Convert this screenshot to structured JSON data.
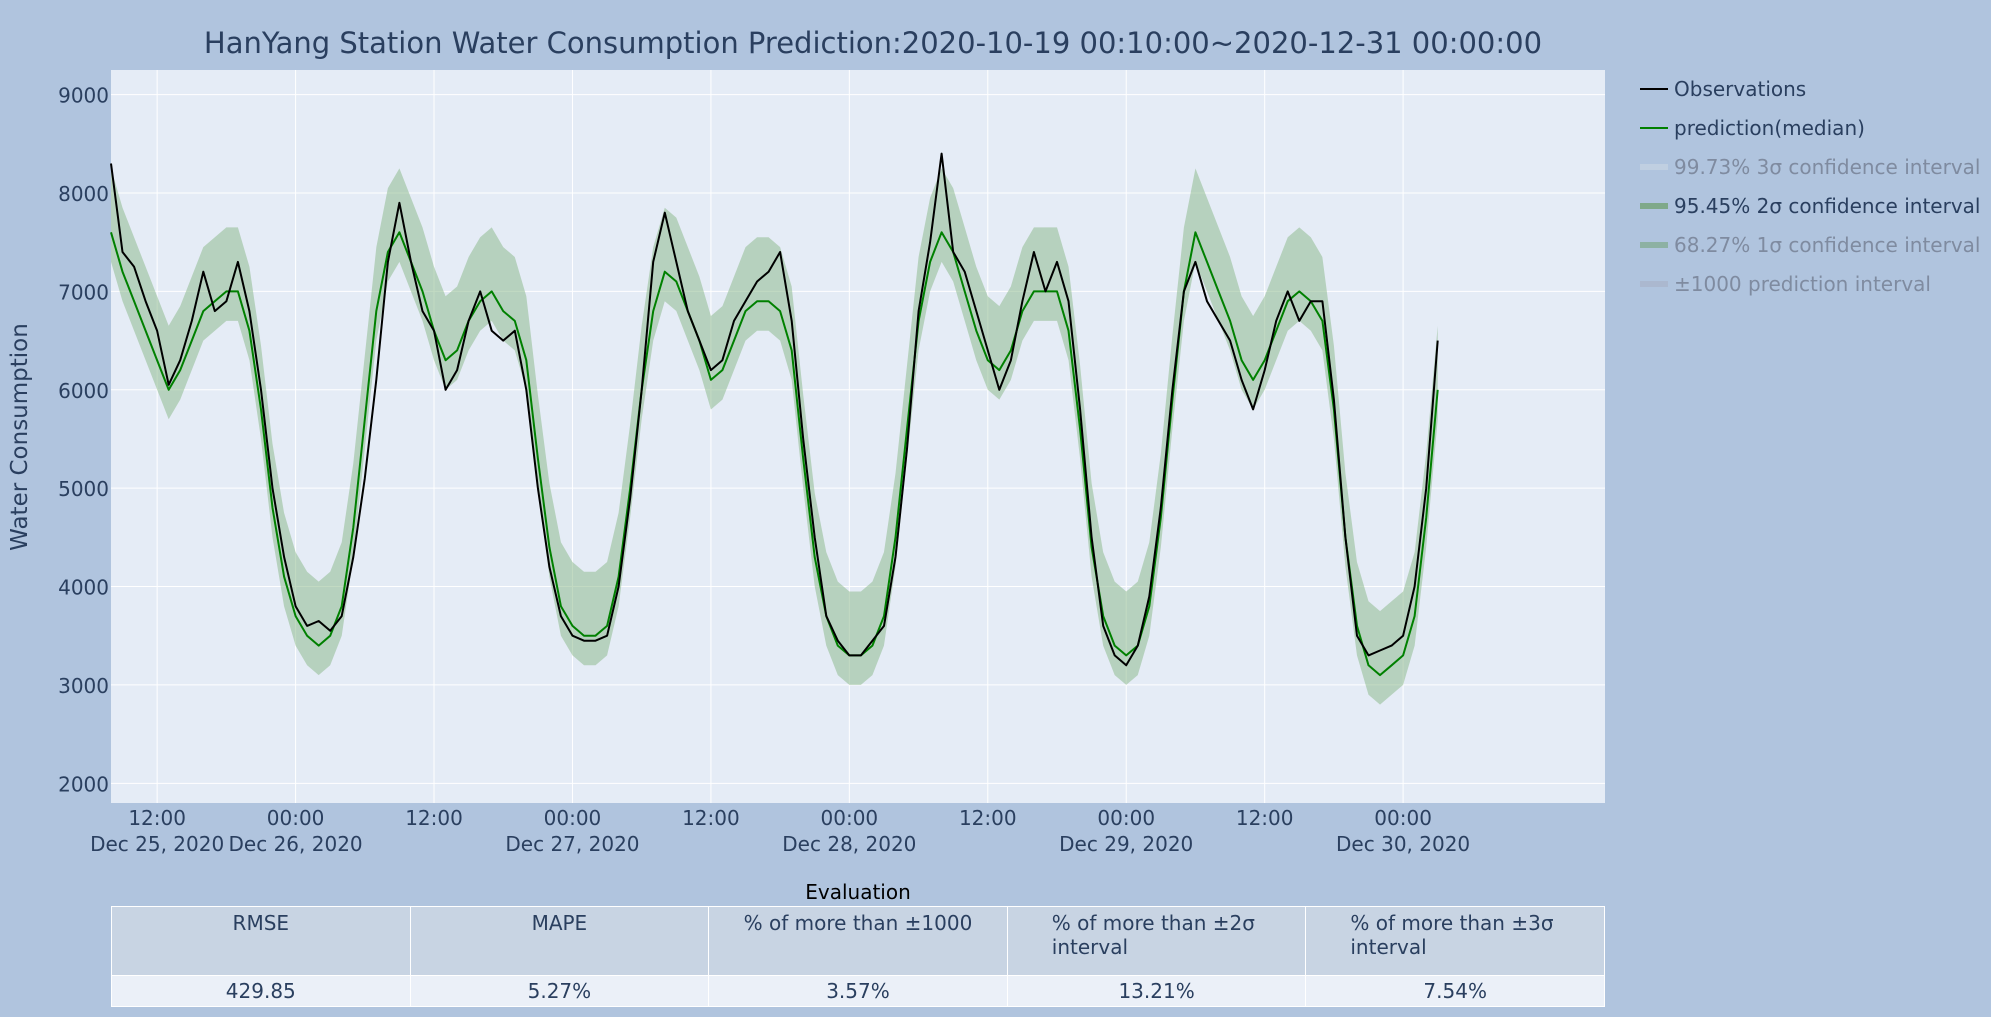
{
  "chart_data": {
    "type": "line",
    "title": "HanYang Station Water Consumption Prediction:2020-10-19 00:10:00~2020-12-31 00:00:00",
    "ylabel": "Water Consumption",
    "xlabel": "",
    "x_range": [
      "2020-12-25 08:00",
      "2020-12-30 17:30"
    ],
    "ylim": [
      1800,
      9250
    ],
    "y_ticks": [
      "2000",
      "3000",
      "4000",
      "5000",
      "6000",
      "7000",
      "8000",
      "9000"
    ],
    "x_ticks": [
      {
        "t": "2020-12-25 12:00",
        "label": "12:00",
        "date": "Dec 25, 2020"
      },
      {
        "t": "2020-12-26 00:00",
        "label": "00:00",
        "date": "Dec 26, 2020"
      },
      {
        "t": "2020-12-26 12:00",
        "label": "12:00",
        "date": ""
      },
      {
        "t": "2020-12-27 00:00",
        "label": "00:00",
        "date": "Dec 27, 2020"
      },
      {
        "t": "2020-12-27 12:00",
        "label": "12:00",
        "date": ""
      },
      {
        "t": "2020-12-28 00:00",
        "label": "00:00",
        "date": "Dec 28, 2020"
      },
      {
        "t": "2020-12-28 12:00",
        "label": "12:00",
        "date": ""
      },
      {
        "t": "2020-12-29 00:00",
        "label": "00:00",
        "date": "Dec 29, 2020"
      },
      {
        "t": "2020-12-29 12:00",
        "label": "12:00",
        "date": ""
      },
      {
        "t": "2020-12-30 00:00",
        "label": "00:00",
        "date": "Dec 30, 2020"
      }
    ],
    "grid": true,
    "legend_position": "right",
    "legend": [
      {
        "name": "Observations",
        "color": "#000000",
        "active": true
      },
      {
        "name": "prediction(median)",
        "color": "#008000",
        "active": true
      },
      {
        "name": "99.73% 3σ confidence interval",
        "color": "#c8d4e3",
        "active": false
      },
      {
        "name": "95.45% 2σ confidence interval",
        "color": "#7fa98a",
        "active": true
      },
      {
        "name": "68.27% 1σ confidence interval",
        "color": "#7fa98a",
        "active": false
      },
      {
        "name": "±1000 prediction interval",
        "color": "#a9b4c9",
        "active": false
      }
    ],
    "band_color": "#8fbc8f",
    "series": [
      {
        "name": "Observations",
        "color": "#000000",
        "points": [
          [
            "2020-12-25 08:00",
            8300
          ],
          [
            "2020-12-25 09:00",
            7400
          ],
          [
            "2020-12-25 10:00",
            7250
          ],
          [
            "2020-12-25 11:00",
            6900
          ],
          [
            "2020-12-25 12:00",
            6600
          ],
          [
            "2020-12-25 13:00",
            6050
          ],
          [
            "2020-12-25 14:00",
            6300
          ],
          [
            "2020-12-25 15:00",
            6700
          ],
          [
            "2020-12-25 16:00",
            7200
          ],
          [
            "2020-12-25 17:00",
            6800
          ],
          [
            "2020-12-25 18:00",
            6900
          ],
          [
            "2020-12-25 19:00",
            7300
          ],
          [
            "2020-12-25 20:00",
            6800
          ],
          [
            "2020-12-25 21:00",
            6000
          ],
          [
            "2020-12-25 22:00",
            5000
          ],
          [
            "2020-12-25 23:00",
            4300
          ],
          [
            "2020-12-26 00:00",
            3800
          ],
          [
            "2020-12-26 01:00",
            3600
          ],
          [
            "2020-12-26 02:00",
            3650
          ],
          [
            "2020-12-26 03:00",
            3550
          ],
          [
            "2020-12-26 04:00",
            3700
          ],
          [
            "2020-12-26 05:00",
            4300
          ],
          [
            "2020-12-26 06:00",
            5100
          ],
          [
            "2020-12-26 07:00",
            6100
          ],
          [
            "2020-12-26 08:00",
            7300
          ],
          [
            "2020-12-26 09:00",
            7900
          ],
          [
            "2020-12-26 10:00",
            7300
          ],
          [
            "2020-12-26 11:00",
            6800
          ],
          [
            "2020-12-26 12:00",
            6600
          ],
          [
            "2020-12-26 13:00",
            6000
          ],
          [
            "2020-12-26 14:00",
            6200
          ],
          [
            "2020-12-26 15:00",
            6700
          ],
          [
            "2020-12-26 16:00",
            7000
          ],
          [
            "2020-12-26 17:00",
            6600
          ],
          [
            "2020-12-26 18:00",
            6500
          ],
          [
            "2020-12-26 19:00",
            6600
          ],
          [
            "2020-12-26 20:00",
            6000
          ],
          [
            "2020-12-26 21:00",
            5000
          ],
          [
            "2020-12-26 22:00",
            4200
          ],
          [
            "2020-12-26 23:00",
            3700
          ],
          [
            "2020-12-27 00:00",
            3500
          ],
          [
            "2020-12-27 01:00",
            3450
          ],
          [
            "2020-12-27 02:00",
            3450
          ],
          [
            "2020-12-27 03:00",
            3500
          ],
          [
            "2020-12-27 04:00",
            4000
          ],
          [
            "2020-12-27 05:00",
            4900
          ],
          [
            "2020-12-27 06:00",
            6000
          ],
          [
            "2020-12-27 07:00",
            7300
          ],
          [
            "2020-12-27 08:00",
            7800
          ],
          [
            "2020-12-27 09:00",
            7300
          ],
          [
            "2020-12-27 10:00",
            6800
          ],
          [
            "2020-12-27 11:00",
            6500
          ],
          [
            "2020-12-27 12:00",
            6200
          ],
          [
            "2020-12-27 13:00",
            6300
          ],
          [
            "2020-12-27 14:00",
            6700
          ],
          [
            "2020-12-27 15:00",
            6900
          ],
          [
            "2020-12-27 16:00",
            7100
          ],
          [
            "2020-12-27 17:00",
            7200
          ],
          [
            "2020-12-27 18:00",
            7400
          ],
          [
            "2020-12-27 19:00",
            6700
          ],
          [
            "2020-12-27 20:00",
            5500
          ],
          [
            "2020-12-27 21:00",
            4500
          ],
          [
            "2020-12-27 22:00",
            3700
          ],
          [
            "2020-12-27 23:00",
            3450
          ],
          [
            "2020-12-28 00:00",
            3300
          ],
          [
            "2020-12-28 01:00",
            3300
          ],
          [
            "2020-12-28 02:00",
            3450
          ],
          [
            "2020-12-28 03:00",
            3600
          ],
          [
            "2020-12-28 04:00",
            4300
          ],
          [
            "2020-12-28 05:00",
            5400
          ],
          [
            "2020-12-28 06:00",
            6800
          ],
          [
            "2020-12-28 07:00",
            7500
          ],
          [
            "2020-12-28 08:00",
            8400
          ],
          [
            "2020-12-28 09:00",
            7400
          ],
          [
            "2020-12-28 10:00",
            7200
          ],
          [
            "2020-12-28 11:00",
            6800
          ],
          [
            "2020-12-28 12:00",
            6400
          ],
          [
            "2020-12-28 13:00",
            6000
          ],
          [
            "2020-12-28 14:00",
            6300
          ],
          [
            "2020-12-28 15:00",
            6900
          ],
          [
            "2020-12-28 16:00",
            7400
          ],
          [
            "2020-12-28 17:00",
            7000
          ],
          [
            "2020-12-28 18:00",
            7300
          ],
          [
            "2020-12-28 19:00",
            6900
          ],
          [
            "2020-12-28 20:00",
            5800
          ],
          [
            "2020-12-28 21:00",
            4500
          ],
          [
            "2020-12-28 22:00",
            3600
          ],
          [
            "2020-12-28 23:00",
            3300
          ],
          [
            "2020-12-29 00:00",
            3200
          ],
          [
            "2020-12-29 01:00",
            3400
          ],
          [
            "2020-12-29 02:00",
            3900
          ],
          [
            "2020-12-29 03:00",
            4800
          ],
          [
            "2020-12-29 04:00",
            6000
          ],
          [
            "2020-12-29 05:00",
            7000
          ],
          [
            "2020-12-29 06:00",
            7300
          ],
          [
            "2020-12-29 07:00",
            6900
          ],
          [
            "2020-12-29 08:00",
            6700
          ],
          [
            "2020-12-29 09:00",
            6500
          ],
          [
            "2020-12-29 10:00",
            6100
          ],
          [
            "2020-12-29 11:00",
            5800
          ],
          [
            "2020-12-29 12:00",
            6200
          ],
          [
            "2020-12-29 13:00",
            6700
          ],
          [
            "2020-12-29 14:00",
            7000
          ],
          [
            "2020-12-29 15:00",
            6700
          ],
          [
            "2020-12-29 16:00",
            6900
          ],
          [
            "2020-12-29 17:00",
            6900
          ],
          [
            "2020-12-29 18:00",
            5900
          ],
          [
            "2020-12-29 19:00",
            4500
          ],
          [
            "2020-12-29 20:00",
            3500
          ],
          [
            "2020-12-29 21:00",
            3300
          ],
          [
            "2020-12-29 22:00",
            3350
          ],
          [
            "2020-12-29 23:00",
            3400
          ],
          [
            "2020-12-30 00:00",
            3500
          ],
          [
            "2020-12-30 01:00",
            4000
          ],
          [
            "2020-12-30 02:00",
            5000
          ],
          [
            "2020-12-30 03:00",
            6500
          ]
        ]
      },
      {
        "name": "prediction(median)",
        "color": "#008000",
        "points": [
          [
            "2020-12-25 08:00",
            7600
          ],
          [
            "2020-12-25 09:00",
            7200
          ],
          [
            "2020-12-25 10:00",
            6900
          ],
          [
            "2020-12-25 11:00",
            6600
          ],
          [
            "2020-12-25 12:00",
            6300
          ],
          [
            "2020-12-25 13:00",
            6000
          ],
          [
            "2020-12-25 14:00",
            6200
          ],
          [
            "2020-12-25 15:00",
            6500
          ],
          [
            "2020-12-25 16:00",
            6800
          ],
          [
            "2020-12-25 17:00",
            6900
          ],
          [
            "2020-12-25 18:00",
            7000
          ],
          [
            "2020-12-25 19:00",
            7000
          ],
          [
            "2020-12-25 20:00",
            6600
          ],
          [
            "2020-12-25 21:00",
            5800
          ],
          [
            "2020-12-25 22:00",
            4800
          ],
          [
            "2020-12-25 23:00",
            4100
          ],
          [
            "2020-12-26 00:00",
            3700
          ],
          [
            "2020-12-26 01:00",
            3500
          ],
          [
            "2020-12-26 02:00",
            3400
          ],
          [
            "2020-12-26 03:00",
            3500
          ],
          [
            "2020-12-26 04:00",
            3800
          ],
          [
            "2020-12-26 05:00",
            4600
          ],
          [
            "2020-12-26 06:00",
            5700
          ],
          [
            "2020-12-26 07:00",
            6800
          ],
          [
            "2020-12-26 08:00",
            7400
          ],
          [
            "2020-12-26 09:00",
            7600
          ],
          [
            "2020-12-26 10:00",
            7300
          ],
          [
            "2020-12-26 11:00",
            7000
          ],
          [
            "2020-12-26 12:00",
            6600
          ],
          [
            "2020-12-26 13:00",
            6300
          ],
          [
            "2020-12-26 14:00",
            6400
          ],
          [
            "2020-12-26 15:00",
            6700
          ],
          [
            "2020-12-26 16:00",
            6900
          ],
          [
            "2020-12-26 17:00",
            7000
          ],
          [
            "2020-12-26 18:00",
            6800
          ],
          [
            "2020-12-26 19:00",
            6700
          ],
          [
            "2020-12-26 20:00",
            6300
          ],
          [
            "2020-12-26 21:00",
            5300
          ],
          [
            "2020-12-26 22:00",
            4400
          ],
          [
            "2020-12-26 23:00",
            3800
          ],
          [
            "2020-12-27 00:00",
            3600
          ],
          [
            "2020-12-27 01:00",
            3500
          ],
          [
            "2020-12-27 02:00",
            3500
          ],
          [
            "2020-12-27 03:00",
            3600
          ],
          [
            "2020-12-27 04:00",
            4100
          ],
          [
            "2020-12-27 05:00",
            5000
          ],
          [
            "2020-12-27 06:00",
            6000
          ],
          [
            "2020-12-27 07:00",
            6800
          ],
          [
            "2020-12-27 08:00",
            7200
          ],
          [
            "2020-12-27 09:00",
            7100
          ],
          [
            "2020-12-27 10:00",
            6800
          ],
          [
            "2020-12-27 11:00",
            6500
          ],
          [
            "2020-12-27 12:00",
            6100
          ],
          [
            "2020-12-27 13:00",
            6200
          ],
          [
            "2020-12-27 14:00",
            6500
          ],
          [
            "2020-12-27 15:00",
            6800
          ],
          [
            "2020-12-27 16:00",
            6900
          ],
          [
            "2020-12-27 17:00",
            6900
          ],
          [
            "2020-12-27 18:00",
            6800
          ],
          [
            "2020-12-27 19:00",
            6400
          ],
          [
            "2020-12-27 20:00",
            5300
          ],
          [
            "2020-12-27 21:00",
            4300
          ],
          [
            "2020-12-27 22:00",
            3700
          ],
          [
            "2020-12-27 23:00",
            3400
          ],
          [
            "2020-12-28 00:00",
            3300
          ],
          [
            "2020-12-28 01:00",
            3300
          ],
          [
            "2020-12-28 02:00",
            3400
          ],
          [
            "2020-12-28 03:00",
            3700
          ],
          [
            "2020-12-28 04:00",
            4500
          ],
          [
            "2020-12-28 05:00",
            5600
          ],
          [
            "2020-12-28 06:00",
            6700
          ],
          [
            "2020-12-28 07:00",
            7300
          ],
          [
            "2020-12-28 08:00",
            7600
          ],
          [
            "2020-12-28 09:00",
            7400
          ],
          [
            "2020-12-28 10:00",
            7000
          ],
          [
            "2020-12-28 11:00",
            6600
          ],
          [
            "2020-12-28 12:00",
            6300
          ],
          [
            "2020-12-28 13:00",
            6200
          ],
          [
            "2020-12-28 14:00",
            6400
          ],
          [
            "2020-12-28 15:00",
            6800
          ],
          [
            "2020-12-28 16:00",
            7000
          ],
          [
            "2020-12-28 17:00",
            7000
          ],
          [
            "2020-12-28 18:00",
            7000
          ],
          [
            "2020-12-28 19:00",
            6600
          ],
          [
            "2020-12-28 20:00",
            5600
          ],
          [
            "2020-12-28 21:00",
            4400
          ],
          [
            "2020-12-28 22:00",
            3700
          ],
          [
            "2020-12-28 23:00",
            3400
          ],
          [
            "2020-12-29 00:00",
            3300
          ],
          [
            "2020-12-29 01:00",
            3400
          ],
          [
            "2020-12-29 02:00",
            3800
          ],
          [
            "2020-12-29 03:00",
            4700
          ],
          [
            "2020-12-29 04:00",
            5900
          ],
          [
            "2020-12-29 05:00",
            7000
          ],
          [
            "2020-12-29 06:00",
            7600
          ],
          [
            "2020-12-29 07:00",
            7300
          ],
          [
            "2020-12-29 08:00",
            7000
          ],
          [
            "2020-12-29 09:00",
            6700
          ],
          [
            "2020-12-29 10:00",
            6300
          ],
          [
            "2020-12-29 11:00",
            6100
          ],
          [
            "2020-12-29 12:00",
            6300
          ],
          [
            "2020-12-29 13:00",
            6600
          ],
          [
            "2020-12-29 14:00",
            6900
          ],
          [
            "2020-12-29 15:00",
            7000
          ],
          [
            "2020-12-29 16:00",
            6900
          ],
          [
            "2020-12-29 17:00",
            6700
          ],
          [
            "2020-12-29 18:00",
            5800
          ],
          [
            "2020-12-29 19:00",
            4500
          ],
          [
            "2020-12-29 20:00",
            3600
          ],
          [
            "2020-12-29 21:00",
            3200
          ],
          [
            "2020-12-29 22:00",
            3100
          ],
          [
            "2020-12-29 23:00",
            3200
          ],
          [
            "2020-12-30 00:00",
            3300
          ],
          [
            "2020-12-30 01:00",
            3700
          ],
          [
            "2020-12-30 02:00",
            4700
          ],
          [
            "2020-12-30 03:00",
            6000
          ]
        ]
      }
    ]
  },
  "evaluation": {
    "title": "Evaluation",
    "headers": [
      "RMSE",
      "MAPE",
      "% of more than ±1000",
      "% of more than ±2σ interval",
      "% of more than ±3σ interval"
    ],
    "values": [
      "429.85",
      "5.27%",
      "3.57%",
      "13.21%",
      "7.54%"
    ]
  }
}
